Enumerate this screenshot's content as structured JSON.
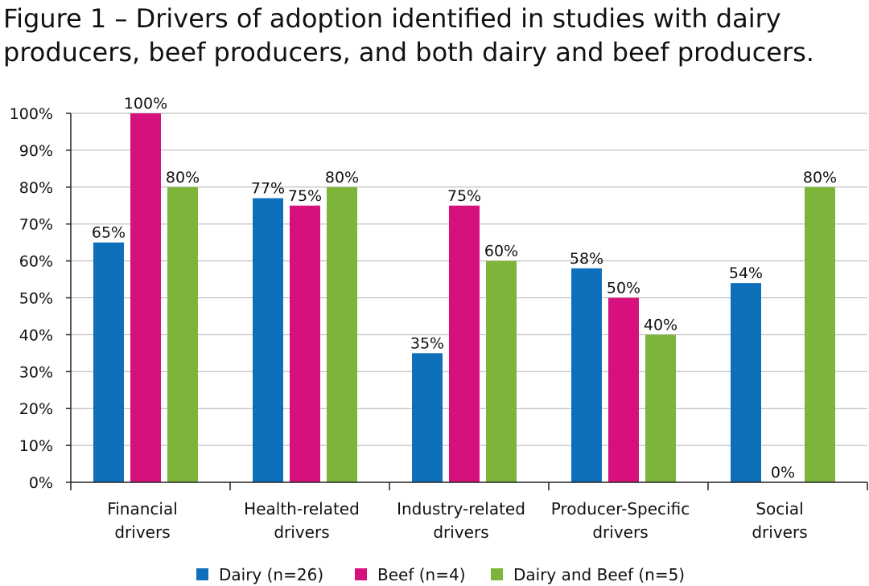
{
  "title": "Figure 1 – Drivers of adoption identified in studies with dairy producers, beef producers, and both dairy and beef producers.",
  "chart_data": {
    "type": "bar",
    "categories": [
      [
        "Financial",
        "drivers"
      ],
      [
        "Health-related",
        "drivers"
      ],
      [
        "Industry-related",
        "drivers"
      ],
      [
        "Producer-Specific",
        "drivers"
      ],
      [
        "Social",
        "drivers"
      ]
    ],
    "series": [
      {
        "name": "Dairy (n=26)",
        "color": "#0e6fba",
        "values": [
          65,
          77,
          35,
          58,
          54
        ],
        "labels": [
          "65%",
          "77%",
          "35%",
          "58%",
          "54%"
        ]
      },
      {
        "name": "Beef (n=4)",
        "color": "#d6117d",
        "values": [
          100,
          75,
          75,
          50,
          0
        ],
        "labels": [
          "100%",
          "75%",
          "75%",
          "50%",
          "0%"
        ]
      },
      {
        "name": "Dairy and Beef (n=5)",
        "color": "#7db53b",
        "values": [
          80,
          80,
          60,
          40,
          80
        ],
        "labels": [
          "80%",
          "80%",
          "60%",
          "40%",
          "80%"
        ]
      }
    ],
    "yticks": [
      "0%",
      "10%",
      "20%",
      "30%",
      "40%",
      "50%",
      "60%",
      "70%",
      "80%",
      "90%",
      "100%"
    ],
    "ylim": [
      0,
      100
    ],
    "grid": true,
    "legend_position": "bottom"
  }
}
